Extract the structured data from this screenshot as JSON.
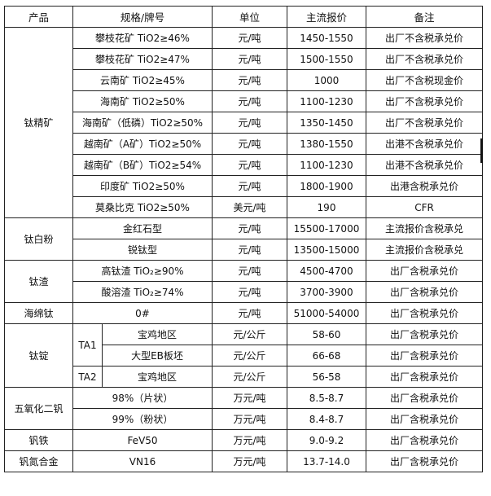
{
  "headers": [
    "产品",
    "规格/牌号",
    "单位",
    "主流报价",
    "备注"
  ],
  "groups": [
    {
      "product": "钛精矿",
      "rows": [
        {
          "spec": "攀枝花矿 TiO2≥46%",
          "unit": "元/吨",
          "price": "1450-1550",
          "note": "出厂不含税承兑价"
        },
        {
          "spec": "攀枝花矿 TiO2≥47%",
          "unit": "元/吨",
          "price": "1500-1550",
          "note": "出厂不含税承兑价"
        },
        {
          "spec": "云南矿 TiO2≥45%",
          "unit": "元/吨",
          "price": "1000",
          "note": "出厂不含税现金价"
        },
        {
          "spec": "海南矿 TiO2≥50%",
          "unit": "元/吨",
          "price": "1100-1230",
          "note": "出厂不含税承兑价"
        },
        {
          "spec": "海南矿（低磷）TiO2≥50%",
          "unit": "元/吨",
          "price": "1350-1450",
          "note": "出厂不含税承兑价"
        },
        {
          "spec": "越南矿（A矿）TiO2≥50%",
          "unit": "元/吨",
          "price": "1380-1550",
          "note": "出港不含税承兑价"
        },
        {
          "spec": "越南矿（B矿）TiO2≥54%",
          "unit": "元/吨",
          "price": "1100-1230",
          "note": "出港不含税承兑价"
        },
        {
          "spec": "印度矿 TiO2≥50%",
          "unit": "元/吨",
          "price": "1800-1900",
          "note": "出港含税承兑价"
        },
        {
          "spec": "莫桑比克 TiO2≥50%",
          "unit": "美元/吨",
          "price": "190",
          "note": "CFR"
        }
      ]
    },
    {
      "product": "钛白粉",
      "rows": [
        {
          "spec": "金红石型",
          "unit": "元/吨",
          "price": "15500-17000",
          "note": "主流报价含税承兑"
        },
        {
          "spec": "锐钛型",
          "unit": "元/吨",
          "price": "13500-15000",
          "note": "主流报价含税承兑"
        }
      ]
    },
    {
      "product": "钛渣",
      "rows": [
        {
          "spec": "高钛渣 TiO₂≥90%",
          "unit": "元/吨",
          "price": "4500-4700",
          "note": "出厂含税承兑价"
        },
        {
          "spec": "酸溶渣 TiO₂≥74%",
          "unit": "元/吨",
          "price": "3700-3900",
          "note": "出厂含税承兑价"
        }
      ]
    },
    {
      "product": "海绵钛",
      "rows": [
        {
          "spec": "0#",
          "unit": "元/吨",
          "price": "51000-54000",
          "note": "出厂含税承兑价"
        }
      ]
    },
    {
      "product": "钛锭",
      "rows": [
        {
          "grade": "TA1",
          "grade_span": 2,
          "spec": "宝鸡地区",
          "unit": "元/公斤",
          "price": "58-60",
          "note": "出厂含税承兑价"
        },
        {
          "grade_cont": true,
          "spec": "大型EB板坯",
          "unit": "元/公斤",
          "price": "66-68",
          "note": "出厂含税承兑价"
        },
        {
          "grade": "TA2",
          "grade_span": 1,
          "spec": "宝鸡地区",
          "unit": "元/公斤",
          "price": "56-58",
          "note": "出厂含税承兑价"
        }
      ]
    },
    {
      "product": "五氧化二钒",
      "rows": [
        {
          "spec": "98%（片状）",
          "unit": "万元/吨",
          "price": "8.5-8.7",
          "note": "出厂含税承兑价"
        },
        {
          "spec": "99%（粉状）",
          "unit": "万元/吨",
          "price": "8.4-8.7",
          "note": "出厂含税承兑价"
        }
      ]
    },
    {
      "product": "钒铁",
      "rows": [
        {
          "spec": "FeV50",
          "unit": "万元/吨",
          "price": "9.0-9.2",
          "note": "出厂含税承兑价"
        }
      ]
    },
    {
      "product": "钒氮合金",
      "rows": [
        {
          "spec": "VN16",
          "unit": "万元/吨",
          "price": "13.7-14.0",
          "note": "出厂含税承兑价"
        }
      ]
    }
  ]
}
